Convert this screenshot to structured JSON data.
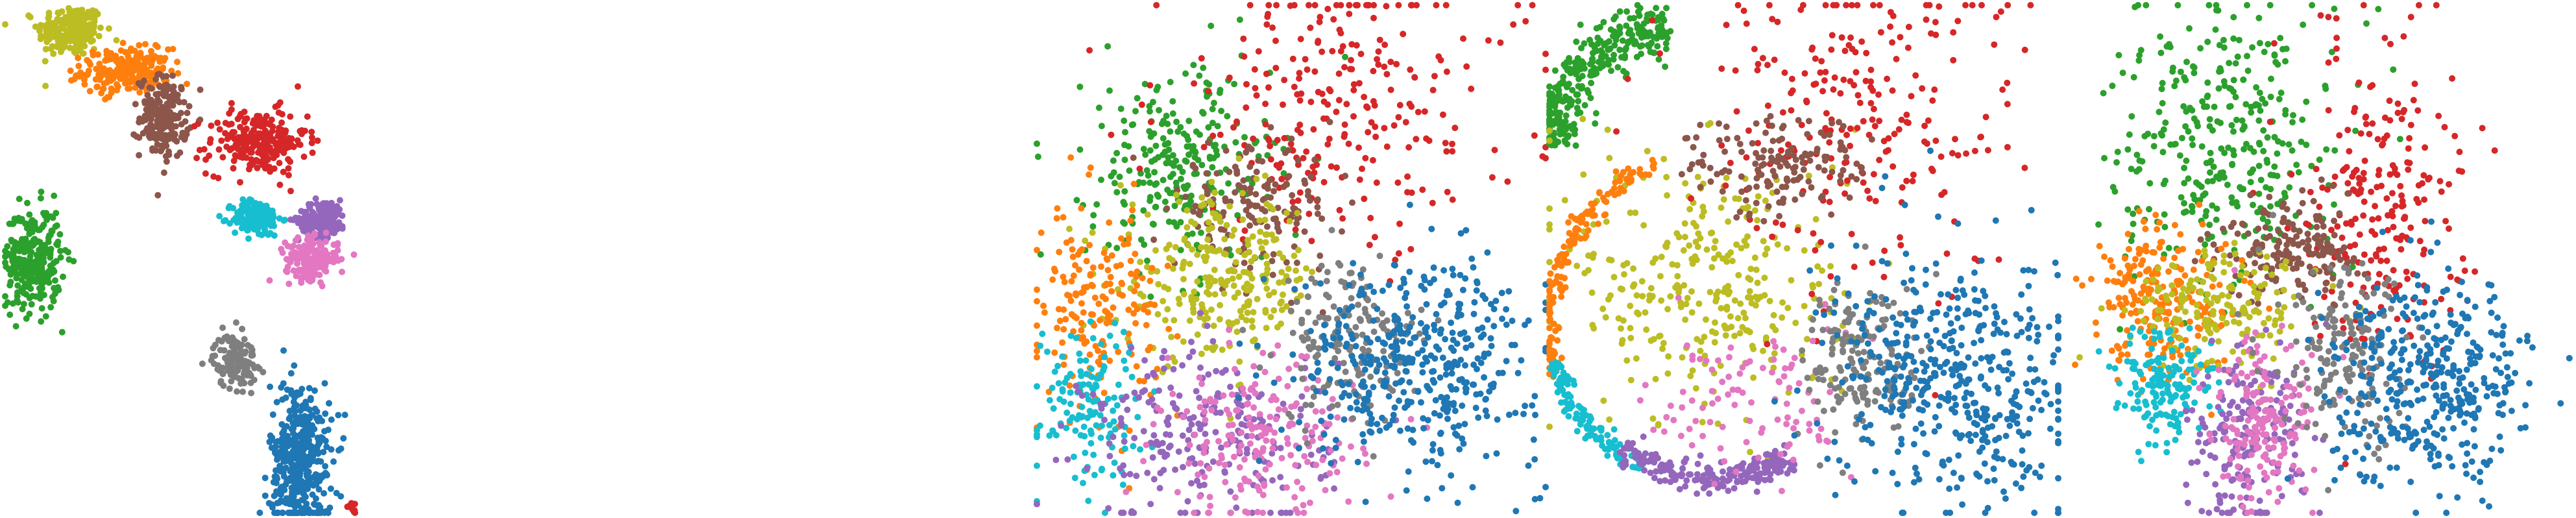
{
  "palette": {
    "blue": "#1f77b4",
    "orange": "#ff7f0e",
    "green": "#2ca02c",
    "red": "#d62728",
    "purple": "#9467bd",
    "brown": "#8c564b",
    "pink": "#e377c2",
    "gray": "#7f7f7f",
    "olive": "#bcbd22",
    "cyan": "#17becf"
  },
  "chart_data": [
    {
      "type": "scatter",
      "axes": "off",
      "grid": false,
      "legend": "none",
      "xlim": [
        0,
        100
      ],
      "ylim": [
        0,
        100
      ],
      "clusters": [
        {
          "color": "olive",
          "cx": 12,
          "cy": 95,
          "sx": 3.0,
          "sy": 2.6,
          "n": 220
        },
        {
          "color": "orange",
          "cx": 22,
          "cy": 87,
          "sx": 4.0,
          "sy": 2.2,
          "n": 240
        },
        {
          "color": "brown",
          "cx": 29,
          "cy": 78,
          "sx": 2.2,
          "sy": 4.0,
          "n": 200
        },
        {
          "color": "red",
          "cx": 46,
          "cy": 73,
          "sx": 4.5,
          "sy": 3.2,
          "n": 240
        },
        {
          "color": "cyan",
          "cx": 46,
          "cy": 58,
          "sx": 2.2,
          "sy": 1.8,
          "n": 160
        },
        {
          "color": "purple",
          "cx": 58,
          "cy": 58,
          "sx": 2.2,
          "sy": 1.8,
          "n": 160
        },
        {
          "color": "pink",
          "cx": 56,
          "cy": 50,
          "sx": 2.4,
          "sy": 2.0,
          "n": 180
        },
        {
          "color": "green",
          "cx": 5,
          "cy": 50,
          "sx": 2.6,
          "sy": 5.0,
          "n": 300
        },
        {
          "color": "gray",
          "cx": 42,
          "cy": 30,
          "sx": 2.0,
          "sy": 2.6,
          "n": 130
        },
        {
          "color": "blue",
          "cx": 54,
          "cy": 10,
          "sx": 2.8,
          "sy": 8.0,
          "n": 420
        },
        {
          "color": "red",
          "cx": 63,
          "cy": 1,
          "sx": 0.8,
          "sy": 0.6,
          "n": 12
        }
      ]
    },
    {
      "type": "scatter",
      "axes": "off",
      "grid": false,
      "legend": "none",
      "xlim": [
        0,
        100
      ],
      "ylim": [
        0,
        100
      ],
      "clusters": [
        {
          "color": "green",
          "cx": 28,
          "cy": 68,
          "sx": 9,
          "sy": 10,
          "n": 260
        },
        {
          "color": "red",
          "cx": 60,
          "cy": 80,
          "sx": 18,
          "sy": 14,
          "n": 260
        },
        {
          "color": "brown",
          "cx": 43,
          "cy": 60,
          "sx": 8,
          "sy": 6,
          "n": 150
        },
        {
          "color": "olive",
          "cx": 36,
          "cy": 46,
          "sx": 10,
          "sy": 8,
          "n": 260
        },
        {
          "color": "orange",
          "cx": 12,
          "cy": 40,
          "sx": 6,
          "sy": 10,
          "n": 180
        },
        {
          "color": "cyan",
          "cx": 10,
          "cy": 22,
          "sx": 5,
          "sy": 8,
          "n": 140
        },
        {
          "color": "purple",
          "cx": 34,
          "cy": 15,
          "sx": 12,
          "sy": 9,
          "n": 240
        },
        {
          "color": "pink",
          "cx": 44,
          "cy": 14,
          "sx": 10,
          "sy": 8,
          "n": 200
        },
        {
          "color": "gray",
          "cx": 62,
          "cy": 34,
          "sx": 7,
          "sy": 8,
          "n": 170
        },
        {
          "color": "blue",
          "cx": 75,
          "cy": 30,
          "sx": 12,
          "sy": 10,
          "n": 420
        }
      ]
    },
    {
      "type": "scatter",
      "axes": "off",
      "grid": false,
      "legend": "none",
      "xlim": [
        0,
        100
      ],
      "ylim": [
        0,
        100
      ],
      "clusters": [
        {
          "color": "green",
          "shape": "arc",
          "cx": 26,
          "cy": 70,
          "r": 26,
          "a0": 95,
          "a1": 175,
          "w": 5,
          "n": 300
        },
        {
          "color": "olive",
          "cx": 32,
          "cy": 45,
          "sx": 14,
          "sy": 14,
          "n": 320
        },
        {
          "color": "orange",
          "shape": "arc",
          "cx": 32,
          "cy": 38,
          "r": 32,
          "a0": 110,
          "a1": 200,
          "w": 2,
          "n": 160
        },
        {
          "color": "cyan",
          "shape": "arc",
          "cx": 32,
          "cy": 38,
          "r": 32,
          "a0": 195,
          "a1": 245,
          "w": 2,
          "n": 120
        },
        {
          "color": "purple",
          "shape": "arc",
          "cx": 32,
          "cy": 38,
          "r": 31,
          "a0": 235,
          "a1": 300,
          "w": 3,
          "n": 200
        },
        {
          "color": "red",
          "cx": 60,
          "cy": 78,
          "sx": 16,
          "sy": 16,
          "n": 240
        },
        {
          "color": "brown",
          "cx": 45,
          "cy": 68,
          "sx": 9,
          "sy": 5,
          "n": 150
        },
        {
          "color": "pink",
          "cx": 40,
          "cy": 22,
          "sx": 10,
          "sy": 8,
          "n": 100
        },
        {
          "color": "gray",
          "cx": 62,
          "cy": 30,
          "sx": 6,
          "sy": 8,
          "n": 170
        },
        {
          "color": "blue",
          "cx": 80,
          "cy": 26,
          "sx": 12,
          "sy": 12,
          "n": 460
        }
      ]
    },
    {
      "type": "scatter",
      "axes": "off",
      "grid": false,
      "legend": "none",
      "xlim": [
        0,
        100
      ],
      "ylim": [
        0,
        100
      ],
      "clusters": [
        {
          "color": "green",
          "cx": 30,
          "cy": 72,
          "sx": 11,
          "sy": 14,
          "n": 340
        },
        {
          "color": "red",
          "cx": 62,
          "cy": 62,
          "sx": 8,
          "sy": 16,
          "n": 240
        },
        {
          "color": "brown",
          "cx": 44,
          "cy": 52,
          "sx": 7,
          "sy": 5,
          "n": 170
        },
        {
          "color": "orange",
          "cx": 18,
          "cy": 42,
          "sx": 8,
          "sy": 8,
          "n": 220
        },
        {
          "color": "olive",
          "cx": 30,
          "cy": 40,
          "sx": 9,
          "sy": 6,
          "n": 170
        },
        {
          "color": "cyan",
          "cx": 18,
          "cy": 25,
          "sx": 5,
          "sy": 6,
          "n": 150
        },
        {
          "color": "purple",
          "cx": 34,
          "cy": 15,
          "sx": 6,
          "sy": 9,
          "n": 200
        },
        {
          "color": "pink",
          "cx": 38,
          "cy": 17,
          "sx": 5,
          "sy": 8,
          "n": 170
        },
        {
          "color": "gray",
          "cx": 55,
          "cy": 30,
          "sx": 7,
          "sy": 9,
          "n": 170
        },
        {
          "color": "blue",
          "cx": 72,
          "cy": 26,
          "sx": 10,
          "sy": 10,
          "n": 400
        }
      ]
    }
  ]
}
